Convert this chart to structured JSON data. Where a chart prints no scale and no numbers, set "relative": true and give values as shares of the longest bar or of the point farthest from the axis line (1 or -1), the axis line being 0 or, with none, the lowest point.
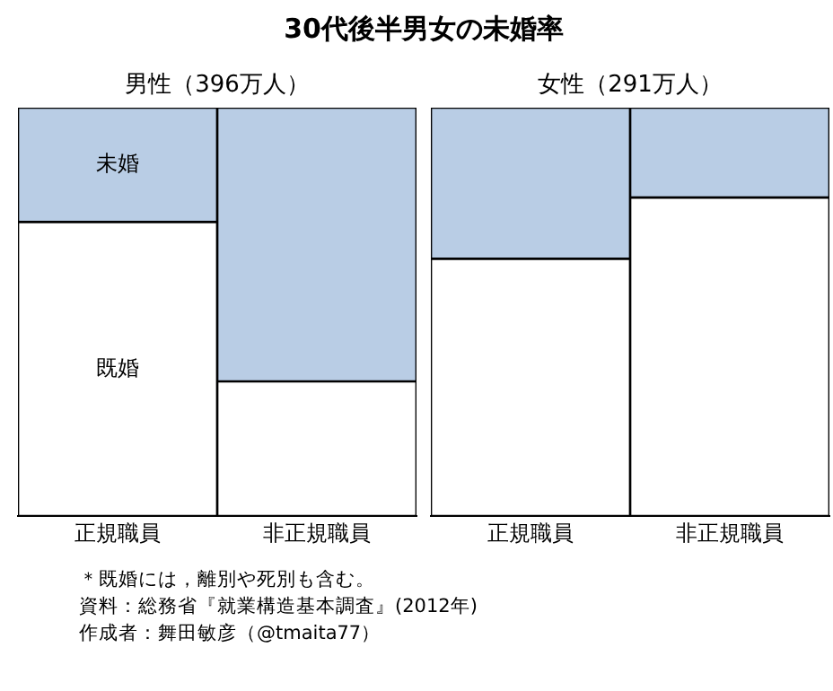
{
  "chart_data": [
    {
      "type": "bar",
      "title": "30代後半男女の未婚率",
      "subtitle": "男性（396万人）",
      "categories": [
        "正規職員",
        "非正規職員"
      ],
      "stacked": true,
      "relative": true,
      "legend": false,
      "grid": false,
      "series": [
        {
          "name": "既婚",
          "color": "#ffffff",
          "values": [
            0.72,
            0.33
          ]
        },
        {
          "name": "未婚",
          "color": "#b9cde5",
          "values": [
            0.28,
            0.67
          ]
        }
      ],
      "annotations": [
        "＊既婚には，離別や死別も含む。",
        "資料：総務省『就業構造基本調査』(2012年)",
        "作成者：舞田敏彦（@tmaita77）"
      ]
    },
    {
      "type": "bar",
      "subtitle": "女性（291万人）",
      "categories": [
        "正規職員",
        "非正規職員"
      ],
      "stacked": true,
      "relative": true,
      "legend": false,
      "grid": false,
      "series": [
        {
          "color": "#ffffff",
          "values": [
            0.63,
            0.78
          ]
        },
        {
          "color": "#b9cde5",
          "values": [
            0.37,
            0.22
          ]
        }
      ]
    }
  ]
}
